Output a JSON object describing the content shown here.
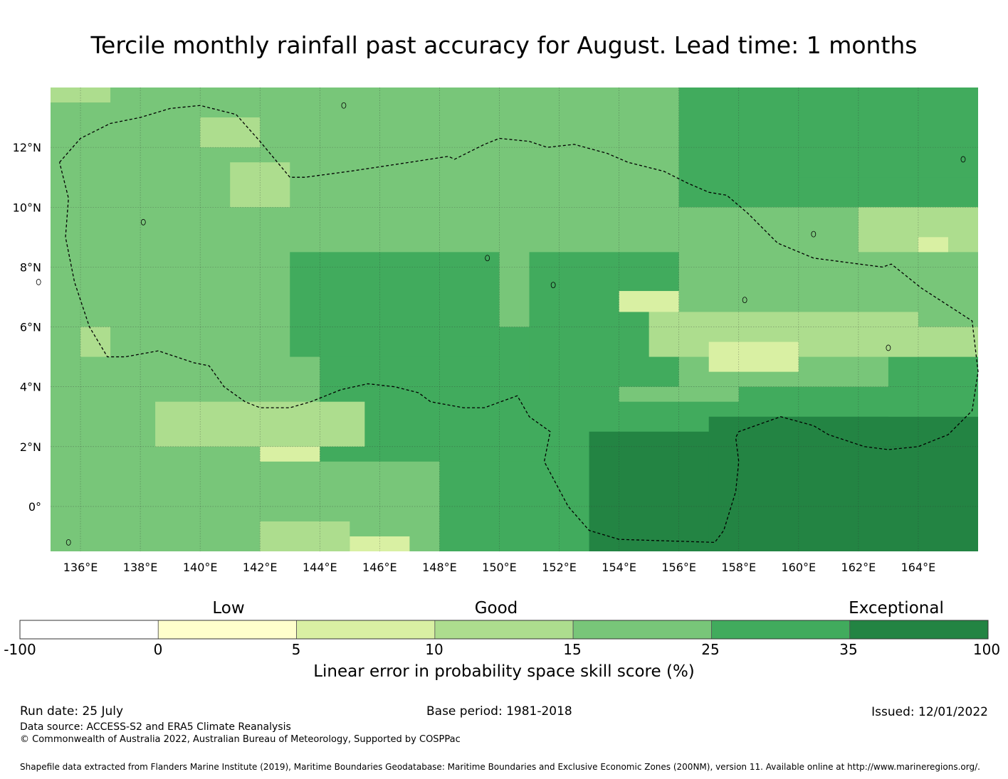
{
  "title": "Tercile monthly rainfall past accuracy for August. Lead time: 1 months",
  "map": {
    "lon_range": [
      135,
      166
    ],
    "lat_range": [
      -1.5,
      14
    ],
    "lon_ticks": [
      "136°E",
      "138°E",
      "140°E",
      "142°E",
      "144°E",
      "146°E",
      "148°E",
      "150°E",
      "152°E",
      "154°E",
      "156°E",
      "158°E",
      "160°E",
      "162°E",
      "164°E"
    ],
    "lat_ticks": [
      "12°N",
      "10°N",
      "8°N",
      "6°N",
      "4°N",
      "2°N",
      "0°"
    ],
    "grid_style": "dotted",
    "boundary_style": "dashed",
    "projection": "plate-carree"
  },
  "colorbar": {
    "category_labels": [
      {
        "label": "Low"
      },
      {
        "label": "Good"
      },
      {
        "label": "Exceptional"
      }
    ],
    "bins": [
      {
        "color": "#ffffff"
      },
      {
        "color": "#ffffcc"
      },
      {
        "color": "#d9f0a3"
      },
      {
        "color": "#addd8e"
      },
      {
        "color": "#78c679"
      },
      {
        "color": "#41ab5d"
      },
      {
        "color": "#238443"
      }
    ],
    "tick_labels": [
      "-100",
      "0",
      "5",
      "10",
      "15",
      "25",
      "35",
      "100"
    ],
    "label": "Linear error in probability space skill score (%)"
  },
  "footer": {
    "run_date": "Run date: 25 July",
    "base_period": "Base period: 1981-2018",
    "issued": "Issued: 12/01/2022",
    "data_source": "Data source: ACCESS-S2 and ERA5 Climate Reanalysis",
    "copyright": "© Commonwealth of Australia 2022, Australian Bureau of Meteorology, Supported by COSPPac",
    "shapefile": "Shapefile data extracted from Flanders Marine Institute (2019), Maritime Boundaries Geodatabase: Maritime Boundaries and Exclusive Economic Zones (200NM), version 11. Available online at http://www.marineregions.org/."
  }
}
